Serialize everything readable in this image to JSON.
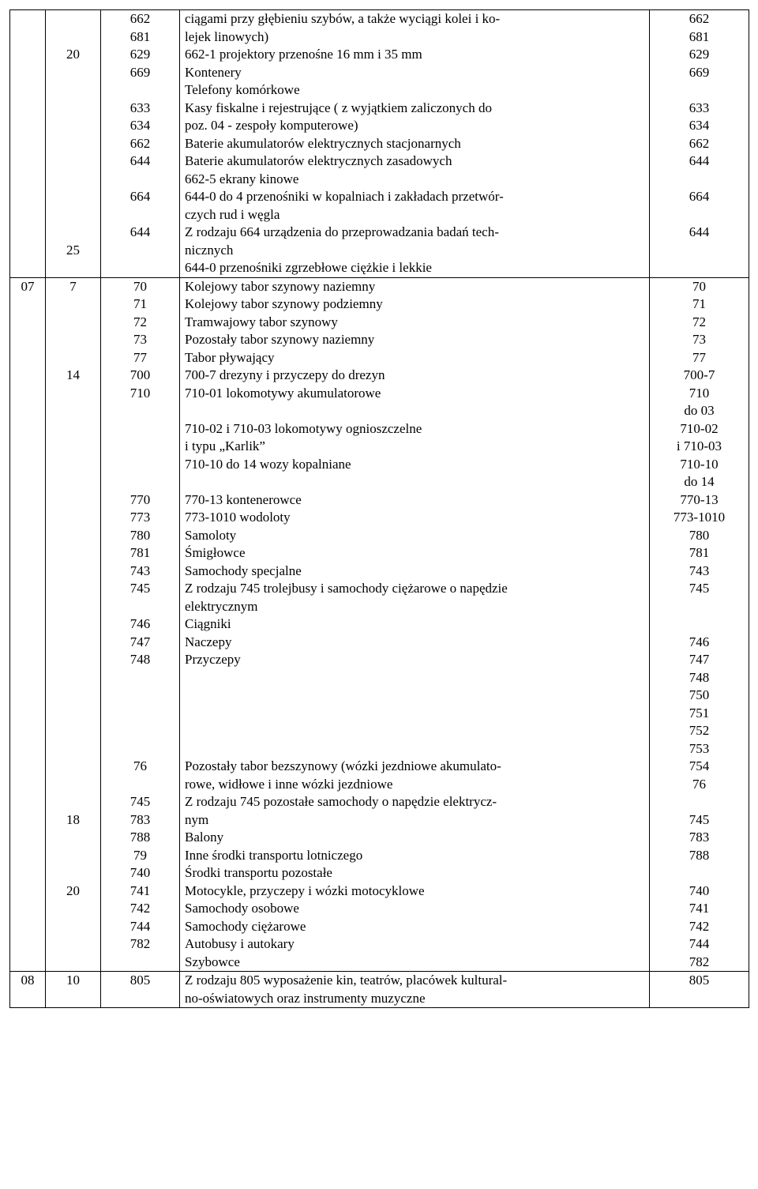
{
  "rows": [
    {
      "c1": [
        ""
      ],
      "c2": [
        "",
        "",
        "20",
        "",
        "",
        "",
        "",
        "",
        "",
        "",
        "",
        "",
        "",
        "25"
      ],
      "c3": [
        "662",
        "681",
        "629",
        "669",
        "",
        "633",
        "634",
        "662",
        "644",
        "",
        "664",
        "",
        "644"
      ],
      "c4": [
        {
          "t": "ciągami przy głębieniu szybów, a także wyciągi kolei i ko-",
          "a": "j"
        },
        {
          "t": "lejek linowych)",
          "a": "l"
        },
        {
          "t": "662-1 projektory przenośne 16 mm i 35 mm",
          "a": "l"
        },
        {
          "t": "Kontenery",
          "a": "l"
        },
        {
          "t": "Telefony komórkowe",
          "a": "l"
        },
        {
          "t": "Kasy fiskalne i rejestrujące ( z wyjątkiem zaliczonych do",
          "a": "j"
        },
        {
          "t": "poz. 04 - zespoły komputerowe)",
          "a": "l"
        },
        {
          "t": "Baterie akumulatorów elektrycznych stacjonarnych",
          "a": "l"
        },
        {
          "t": "Baterie akumulatorów elektrycznych zasadowych",
          "a": "l"
        },
        {
          "t": "662-5 ekrany kinowe",
          "a": "l"
        },
        {
          "t": "644-0 do 4 przenośniki w kopalniach i zakładach przetwór-",
          "a": "j"
        },
        {
          "t": "czych rud i węgla",
          "a": "l"
        },
        {
          "t": "Z rodzaju 664 urządzenia do przeprowadzania badań tech-",
          "a": "j"
        },
        {
          "t": "nicznych",
          "a": "l"
        },
        {
          "t": "644-0 przenośniki zgrzebłowe ciężkie i lekkie",
          "a": "l"
        }
      ],
      "c5": [
        "662",
        "681",
        "629",
        "669",
        "",
        "633",
        "634",
        "662",
        "644",
        "",
        "664",
        "",
        "644"
      ]
    },
    {
      "c1": [
        "07"
      ],
      "c2": [
        "7",
        "",
        "",
        "",
        "",
        "14",
        "",
        "",
        "",
        "",
        "",
        "",
        "",
        "",
        "",
        "",
        "",
        "",
        "",
        "",
        "",
        "",
        "",
        "",
        "",
        "",
        "",
        "",
        "",
        "",
        "18",
        "",
        "",
        "",
        "20"
      ],
      "c3": [
        "70",
        "71",
        "72",
        "73",
        "77",
        "700",
        "710",
        "",
        "",
        "",
        "",
        "",
        "770",
        "773",
        "780",
        "781",
        "743",
        "745",
        "",
        "746",
        "747",
        "748",
        "",
        "",
        "",
        "",
        "",
        "76",
        "",
        "745",
        "783",
        "788",
        "79",
        "740",
        "741",
        "742",
        "744",
        "782"
      ],
      "c4": [
        {
          "t": "Kolejowy tabor szynowy naziemny",
          "a": "l"
        },
        {
          "t": "Kolejowy tabor szynowy podziemny",
          "a": "l"
        },
        {
          "t": "Tramwajowy tabor szynowy",
          "a": "l"
        },
        {
          "t": "Pozostały tabor szynowy naziemny",
          "a": "l"
        },
        {
          "t": "Tabor pływający",
          "a": "l"
        },
        {
          "t": "700-7 drezyny i przyczepy do drezyn",
          "a": "l"
        },
        {
          "t": "710-01 lokomotywy akumulatorowe",
          "a": "l"
        },
        {
          "t": "",
          "a": "l"
        },
        {
          "t": "710-02 i 710-03 lokomotywy ognioszczelne",
          "a": "l"
        },
        {
          "t": "i typu „Karlik”",
          "a": "l"
        },
        {
          "t": "710-10 do 14 wozy kopalniane",
          "a": "l"
        },
        {
          "t": "",
          "a": "l"
        },
        {
          "t": "770-13 kontenerowce",
          "a": "l"
        },
        {
          "t": "773-1010 wodoloty",
          "a": "l"
        },
        {
          "t": "Samoloty",
          "a": "l"
        },
        {
          "t": "Śmigłowce",
          "a": "l"
        },
        {
          "t": "Samochody specjalne",
          "a": "l"
        },
        {
          "t": "Z rodzaju 745 trolejbusy i samochody ciężarowe o napędzie",
          "a": "j"
        },
        {
          "t": "elektrycznym",
          "a": "l"
        },
        {
          "t": "Ciągniki",
          "a": "l"
        },
        {
          "t": "Naczepy",
          "a": "l"
        },
        {
          "t": "Przyczepy",
          "a": "l"
        },
        {
          "t": "",
          "a": "l"
        },
        {
          "t": "",
          "a": "l"
        },
        {
          "t": "",
          "a": "l"
        },
        {
          "t": "",
          "a": "l"
        },
        {
          "t": "",
          "a": "l"
        },
        {
          "t": "Pozostały tabor bezszynowy (wózki jezdniowe akumulato-",
          "a": "j"
        },
        {
          "t": "rowe, widłowe i inne wózki jezdniowe",
          "a": "l"
        },
        {
          "t": "Z rodzaju 745 pozostałe samochody o napędzie elektrycz-",
          "a": "j"
        },
        {
          "t": "nym",
          "a": "l"
        },
        {
          "t": "Balony",
          "a": "l"
        },
        {
          "t": "Inne środki transportu lotniczego",
          "a": "l"
        },
        {
          "t": "Środki transportu pozostałe",
          "a": "l"
        },
        {
          "t": "Motocykle, przyczepy i wózki motocyklowe",
          "a": "l"
        },
        {
          "t": "Samochody osobowe",
          "a": "l"
        },
        {
          "t": "Samochody ciężarowe",
          "a": "l"
        },
        {
          "t": "Autobusy i autokary",
          "a": "l"
        },
        {
          "t": "Szybowce",
          "a": "l"
        }
      ],
      "c5": [
        "70",
        "71",
        "72",
        "73",
        "77",
        "700-7",
        "710",
        "do 03",
        "710-02",
        "i 710-03",
        "710-10",
        "do 14",
        "770-13",
        "773-1010",
        "780",
        "781",
        "743",
        "745",
        "",
        "",
        "746",
        "747",
        "748",
        "750",
        "751",
        "752",
        "753",
        "754",
        "76",
        "",
        "745",
        "783",
        "788",
        "",
        "740",
        "741",
        "742",
        "744",
        "782"
      ]
    },
    {
      "c1": [
        "08"
      ],
      "c2": [
        "10"
      ],
      "c3": [
        "805"
      ],
      "c4": [
        {
          "t": "Z rodzaju 805 wyposażenie kin, teatrów, placówek kultural-",
          "a": "j"
        },
        {
          "t": "no-oświatowych oraz instrumenty muzyczne",
          "a": "l"
        }
      ],
      "c5": [
        "805"
      ]
    }
  ]
}
